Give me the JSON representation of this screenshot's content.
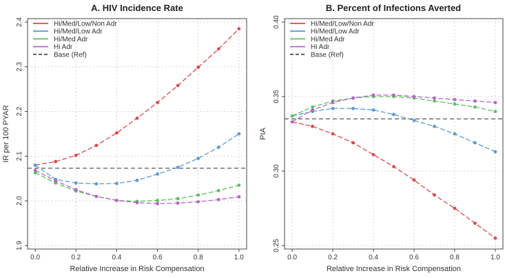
{
  "chart_data": [
    {
      "type": "line",
      "title": "A. HIV Incidence Rate",
      "xlabel": "Relative Increase in Risk Compensation",
      "ylabel": "IR per 100 PYAR",
      "xlim": [
        0,
        1
      ],
      "ylim": [
        1.9,
        2.4
      ],
      "xticks": [
        "0.0",
        "0.2",
        "0.4",
        "0.6",
        "0.8",
        "1.0"
      ],
      "yticks": [
        "1.9",
        "2.0",
        "2.1",
        "2.2",
        "2.3",
        "2.4"
      ],
      "legend_position": "top-left",
      "x": [
        0,
        0.1,
        0.2,
        0.3,
        0.4,
        0.5,
        0.6,
        0.7,
        0.8,
        0.9,
        1.0
      ],
      "series": [
        {
          "name": "Hi/Med/Low/Non Adr",
          "color": "#e0474c",
          "values": [
            2.08,
            2.088,
            2.102,
            2.124,
            2.152,
            2.185,
            2.22,
            2.258,
            2.299,
            2.34,
            2.385
          ]
        },
        {
          "name": "Hi/Med/Low Adr",
          "color": "#5b9bd5",
          "values": [
            2.08,
            2.048,
            2.04,
            2.038,
            2.039,
            2.046,
            2.06,
            2.075,
            2.095,
            2.12,
            2.15
          ]
        },
        {
          "name": "Hi/Med Adr",
          "color": "#5fbf5f",
          "values": [
            2.063,
            2.04,
            2.022,
            2.01,
            2.001,
            1.999,
            2.001,
            2.005,
            2.013,
            2.023,
            2.035
          ]
        },
        {
          "name": "Hi Adr",
          "color": "#b565c8",
          "values": [
            2.068,
            2.045,
            2.025,
            2.01,
            2.001,
            1.996,
            1.994,
            1.995,
            1.998,
            2.003,
            2.009
          ]
        }
      ],
      "reference": {
        "name": "Base (Ref)",
        "value": 2.073,
        "color": "#555555"
      }
    },
    {
      "type": "line",
      "title": "B. Percent of Infections Averted",
      "xlabel": "Relative Increase in Risk Compensation",
      "ylabel": "PIA",
      "xlim": [
        0,
        1
      ],
      "ylim": [
        0.25,
        0.4
      ],
      "xticks": [
        "0.0",
        "0.2",
        "0.4",
        "0.6",
        "0.8",
        "1.0"
      ],
      "yticks": [
        "0.25",
        "0.30",
        "0.35",
        "0.40"
      ],
      "legend_position": "top-left",
      "x": [
        0,
        0.1,
        0.2,
        0.3,
        0.4,
        0.5,
        0.6,
        0.7,
        0.8,
        0.9,
        1.0
      ],
      "series": [
        {
          "name": "Hi/Med/Low/Non Adr",
          "color": "#e0474c",
          "values": [
            0.333,
            0.33,
            0.325,
            0.319,
            0.311,
            0.303,
            0.294,
            0.284,
            0.275,
            0.265,
            0.255
          ]
        },
        {
          "name": "Hi/Med/Low Adr",
          "color": "#5b9bd5",
          "values": [
            0.337,
            0.34,
            0.342,
            0.342,
            0.341,
            0.338,
            0.334,
            0.33,
            0.325,
            0.319,
            0.313
          ]
        },
        {
          "name": "Hi/Med Adr",
          "color": "#5fbf5f",
          "values": [
            0.337,
            0.343,
            0.347,
            0.349,
            0.35,
            0.35,
            0.349,
            0.347,
            0.345,
            0.343,
            0.34
          ]
        },
        {
          "name": "Hi Adr",
          "color": "#b565c8",
          "values": [
            0.333,
            0.341,
            0.346,
            0.349,
            0.351,
            0.351,
            0.35,
            0.349,
            0.348,
            0.347,
            0.346
          ]
        }
      ],
      "reference": {
        "name": "Base (Ref)",
        "value": 0.335,
        "color": "#555555"
      }
    }
  ]
}
